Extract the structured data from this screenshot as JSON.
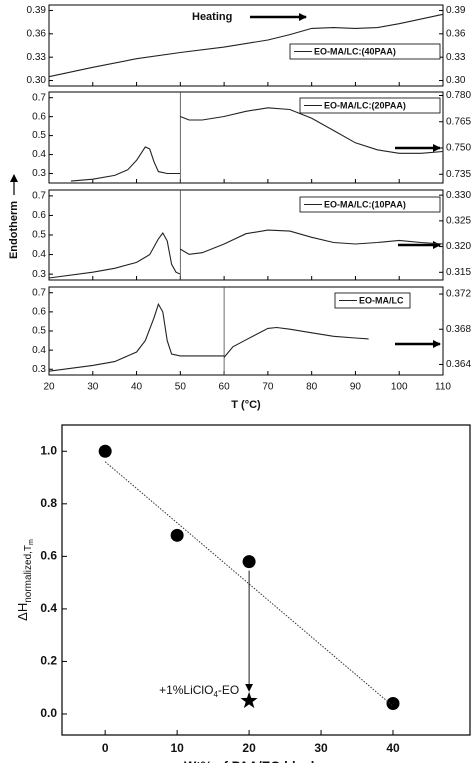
{
  "chart_data": [
    {
      "type": "stacked-line",
      "xlim": [
        20,
        110
      ],
      "xticks": [
        20,
        30,
        40,
        50,
        60,
        70,
        80,
        90,
        100,
        110
      ],
      "xlabel": "T (°C)",
      "ylabel": "Endotherm",
      "annotation": "Heating",
      "panels": [
        {
          "legend": "EO-MA/LC:(40PAA)",
          "ylim": [
            0.293,
            0.397
          ],
          "yticks": [
            {
              "value": 0.3,
              "label": "0.30"
            },
            0.33,
            0.36,
            0.39
          ],
          "y2lim": [
            0.293,
            0.397
          ],
          "y2ticks": [
            {
              "value": 0.3,
              "label": "0.30"
            },
            0.33,
            0.36,
            0.39
          ],
          "series": [
            {
              "color": "#222",
              "x": [
                20,
                30,
                40,
                50,
                60,
                70,
                75,
                80,
                85,
                90,
                95,
                100,
                110
              ],
              "values": [
                0.305,
                0.317,
                0.328,
                0.336,
                0.343,
                0.352,
                0.359,
                0.367,
                0.368,
                0.367,
                0.368,
                0.373,
                0.385
              ]
            }
          ]
        },
        {
          "legend": "EO-MA/LC:(20PAA)",
          "ylim": [
            0.25,
            0.73
          ],
          "yticks": [
            0.3,
            0.4,
            0.5,
            0.6,
            0.7
          ],
          "y2lim": [
            0.73,
            0.782
          ],
          "y2ticks": [
            0.735,
            {
              "value": 0.75,
              "label": "0.750"
            },
            0.765,
            {
              "value": 0.78,
              "label": "0.780"
            }
          ],
          "series": [
            {
              "color": "#222",
              "x": [
                25,
                30,
                35,
                38,
                40,
                42,
                43,
                44,
                45,
                47,
                50
              ],
              "values": [
                0.26,
                0.27,
                0.29,
                0.32,
                0.37,
                0.44,
                0.43,
                0.36,
                0.31,
                0.3,
                0.3
              ]
            },
            {
              "color": "#222",
              "axis": "y2",
              "x": [
                50,
                52,
                55,
                60,
                65,
                70,
                75,
                80,
                85,
                90,
                95,
                100,
                105,
                110
              ],
              "values": [
                0.768,
                0.766,
                0.766,
                0.768,
                0.771,
                0.773,
                0.772,
                0.767,
                0.76,
                0.753,
                0.749,
                0.747,
                0.747,
                0.748
              ]
            }
          ]
        },
        {
          "legend": "EO-MA/LC:(10PAA)",
          "ylim": [
            0.27,
            0.73
          ],
          "yticks": [
            0.3,
            0.4,
            0.5,
            0.6,
            0.7
          ],
          "y2lim": [
            0.3135,
            0.331
          ],
          "y2ticks": [
            0.315,
            {
              "value": 0.32,
              "label": "0.320"
            },
            0.325,
            {
              "value": 0.33,
              "label": "0.330"
            }
          ],
          "series": [
            {
              "color": "#222",
              "x": [
                20,
                30,
                35,
                40,
                43,
                45,
                46,
                47,
                48,
                49,
                50
              ],
              "values": [
                0.28,
                0.31,
                0.33,
                0.36,
                0.4,
                0.48,
                0.51,
                0.47,
                0.35,
                0.31,
                0.3
              ]
            },
            {
              "color": "#222",
              "axis": "y2",
              "x": [
                50,
                52,
                55,
                60,
                65,
                70,
                75,
                80,
                85,
                90,
                95,
                100,
                105,
                110
              ],
              "values": [
                0.3195,
                0.3185,
                0.3188,
                0.3205,
                0.3225,
                0.3232,
                0.323,
                0.3218,
                0.3208,
                0.3205,
                0.3208,
                0.3212,
                0.3208,
                0.3205
              ]
            }
          ]
        },
        {
          "legend": "EO-MA/LC",
          "ylim": [
            0.27,
            0.73
          ],
          "yticks": [
            0.3,
            0.4,
            0.5,
            0.6,
            0.7
          ],
          "y2lim": [
            0.3628,
            0.3728
          ],
          "y2ticks": [
            0.364,
            0.368,
            0.372
          ],
          "series": [
            {
              "color": "#222",
              "x": [
                20,
                30,
                35,
                40,
                42,
                44,
                45,
                46,
                47,
                48,
                50,
                55,
                60
              ],
              "values": [
                0.29,
                0.32,
                0.34,
                0.39,
                0.45,
                0.57,
                0.64,
                0.6,
                0.45,
                0.38,
                0.37,
                0.37,
                0.37
              ]
            },
            {
              "color": "#222",
              "axis": "y2",
              "x": [
                60,
                62,
                65,
                70,
                72,
                75,
                80,
                85,
                90,
                93
              ],
              "values": [
                0.3648,
                0.366,
                0.3668,
                0.3681,
                0.3682,
                0.368,
                0.3676,
                0.3672,
                0.367,
                0.3669
              ]
            }
          ]
        }
      ]
    },
    {
      "type": "scatter",
      "xlim": [
        -6,
        50.7
      ],
      "xticks": [
        0,
        10,
        20,
        30,
        40
      ],
      "ylim": [
        -0.08,
        1.1
      ],
      "yticks": [
        {
          "value": 0,
          "label": "0.0"
        },
        0.2,
        0.4,
        0.6,
        0.8,
        {
          "value": 1,
          "label": "1.0"
        }
      ],
      "xlabel": "Wt% of PAA/EO block",
      "ylabel": {
        "main": "ΔH",
        "sub": "normalized,T",
        "subsub": "m"
      },
      "annotation": {
        "text": "+1%LiClO",
        "sub": "4",
        "after": "-EO"
      },
      "series": [
        {
          "marker": "circle",
          "color": "#000",
          "x": [
            0,
            10,
            20,
            40
          ],
          "values": [
            1,
            0.68,
            0.58,
            0.04
          ]
        },
        {
          "marker": "star",
          "color": "#000",
          "x": [
            20
          ],
          "values": [
            0.05
          ]
        },
        {
          "marker": "dotted-line",
          "color": "#333",
          "x": [
            0,
            40
          ],
          "values": [
            0.96,
            0.03
          ]
        }
      ]
    }
  ]
}
